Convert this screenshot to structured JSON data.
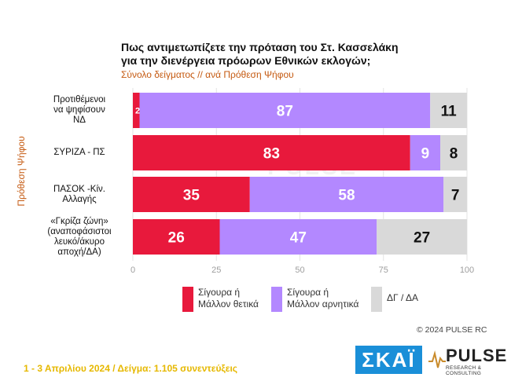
{
  "title_line1": "Πως αντιμετωπίζετε την πρόταση του Στ. Κασσελάκη",
  "title_line2": "για την διενέργεια πρόωρων Εθνικών εκλογών;",
  "subtitle": "Σύνολο δείγματος // ανά Πρόθεση Ψήφου",
  "y_axis_title": "Πρόθεση Ψήφου",
  "colors": {
    "positive": "#e8193c",
    "negative": "#b388ff",
    "dk": "#d9d9d9",
    "axis": "#9e9e9e"
  },
  "chart_data": {
    "type": "bar",
    "orientation": "horizontal",
    "stacked": true,
    "categories": [
      [
        "Προτιθέμενοι",
        "να ψηφίσουν",
        "ΝΔ"
      ],
      [
        "ΣΥΡΙΖΑ - ΠΣ"
      ],
      [
        "ΠΑΣΟΚ -Κίν.",
        "Αλλαγής"
      ],
      [
        "«Γκρίζα ζώνη»",
        "(αναποφάσιστοι",
        "λευκό/άκυρο",
        "αποχή/ΔΑ)"
      ]
    ],
    "series": [
      {
        "name": "Σίγουρα ή Μάλλον θετικά",
        "values": [
          2,
          83,
          35,
          26
        ]
      },
      {
        "name": "Σίγουρα ή Μάλλον αρνητικά",
        "values": [
          87,
          9,
          58,
          47
        ]
      },
      {
        "name": "ΔΓ / ΔΑ",
        "values": [
          11,
          8,
          7,
          27
        ]
      }
    ],
    "xlim": [
      0,
      100
    ],
    "xticks": [
      0,
      25,
      50,
      75,
      100
    ],
    "legend_position": "bottom",
    "grid": true
  },
  "legend": [
    {
      "line1": "Σίγουρα ή",
      "line2": "Μάλλον θετικά"
    },
    {
      "line1": "Σίγουρα ή",
      "line2": "Μάλλον αρνητικά"
    },
    {
      "line1": "ΔΓ / ΔΑ",
      "line2": ""
    }
  ],
  "copyright": "© 2024 PULSE RC",
  "footer": "1 - 3  Απριλίου 2024  /  Δείγμα:  1.105 συνεντεύξεις",
  "logos": {
    "skai": "ΣΚΑΪ",
    "pulse": "PULSE",
    "pulse_sub": "RESEARCH & CONSULTING",
    "watermark": "PULSE"
  }
}
